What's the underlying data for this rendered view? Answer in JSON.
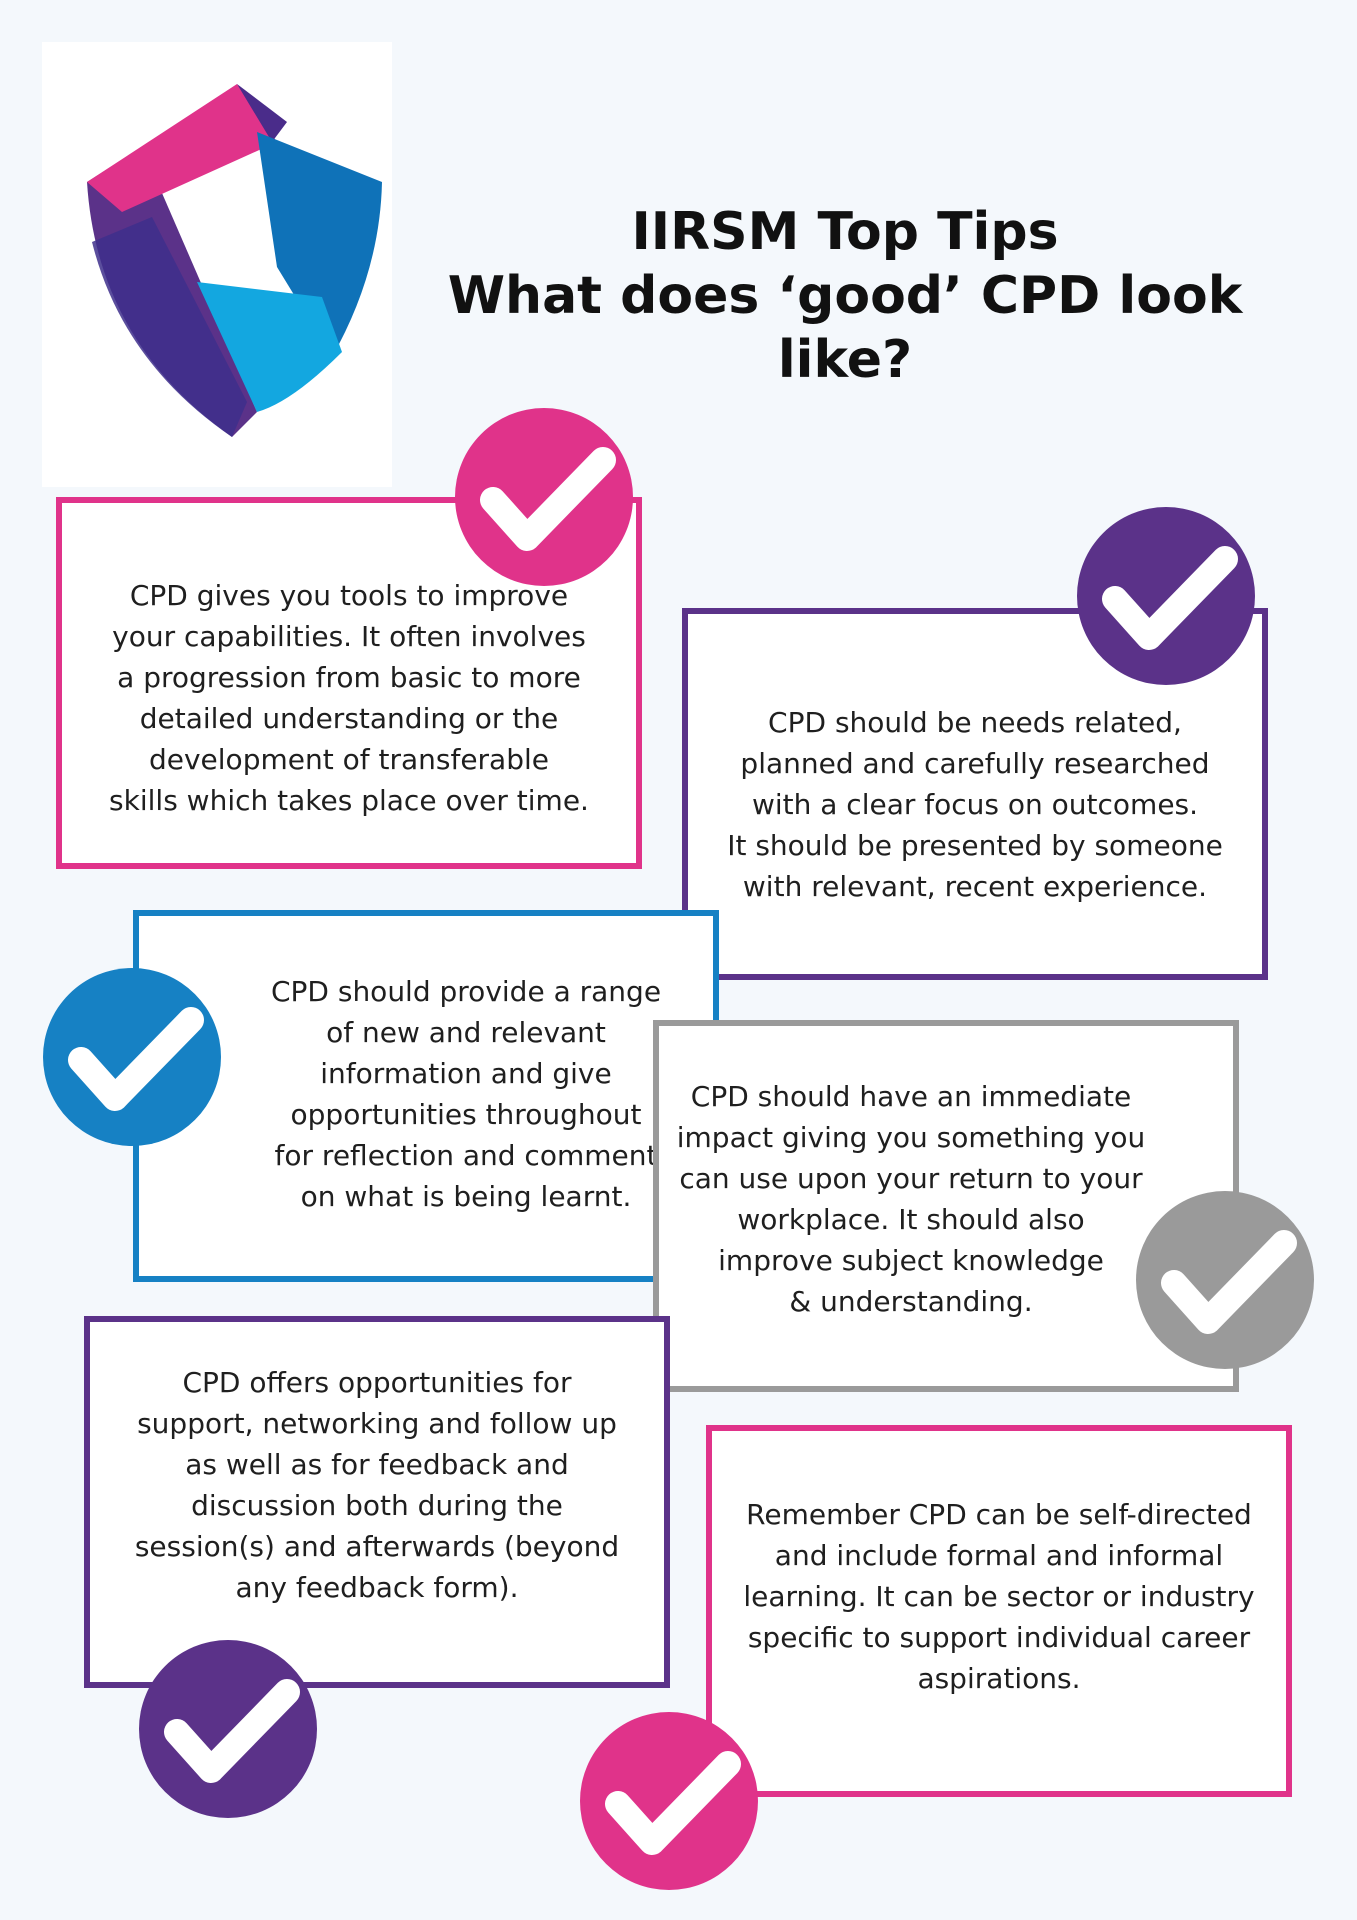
{
  "colors": {
    "pink": "#e0338a",
    "purple": "#5b3289",
    "blue": "#1681c4",
    "gray": "#9a9a9a",
    "background": "#f4f8fc"
  },
  "logo": {
    "icon": "iirsm-shield-logo"
  },
  "header": {
    "title_line1": "IIRSM Top Tips",
    "title_line2": "What does ‘good’ CPD look like?"
  },
  "tips": [
    {
      "text": "CPD  gives you tools to improve\nyour capabilities. It often involves\na progression from basic to more\ndetailed understanding or the\ndevelopment of transferable\nskills which takes place over time.",
      "color": "pink",
      "icon": "checkmark-icon"
    },
    {
      "text": "CPD should be needs related,\nplanned and carefully researched\nwith a clear focus on outcomes.\nIt should be presented by someone\nwith relevant, recent experience.",
      "color": "purple",
      "icon": "checkmark-icon"
    },
    {
      "text": "CPD should provide a range\nof new and relevant\ninformation and give\nopportunities throughout\nfor reflection and comment\non what is being learnt.",
      "color": "blue",
      "icon": "checkmark-icon"
    },
    {
      "text": "CPD should have an immediate\nimpact giving you something you\ncan use upon your return to your\nworkplace. It should also\nimprove subject  knowledge\n& understanding.",
      "color": "gray",
      "icon": "checkmark-icon"
    },
    {
      "text": "CPD offers opportunities for\nsupport, networking and follow up\nas well as for feedback and\ndiscussion both during the\nsession(s) and afterwards (beyond\nany feedback form).",
      "color": "purple",
      "icon": "checkmark-icon"
    },
    {
      "text": "Remember CPD can be self-directed\nand include formal and informal\nlearning. It can be sector or industry\nspecific to support individual career\naspirations.",
      "color": "pink",
      "icon": "checkmark-icon"
    }
  ]
}
